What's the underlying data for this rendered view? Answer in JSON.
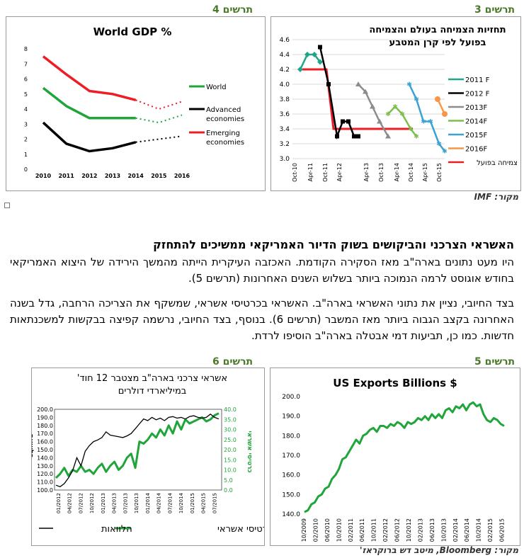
{
  "fig3": {
    "label": "תרשים 3",
    "title_line1": "תחזיות הצמיחה בעולם והצמיחה",
    "title_line2": "בפועל לפי קרן המטבע",
    "yticks": [
      "4.6",
      "4.4",
      "4.2",
      "4.0",
      "3.8",
      "3.6",
      "3.4",
      "3.2",
      "3.0"
    ],
    "xticks": [
      "Oct-10",
      "Apr-11",
      "Oct-11",
      "Apr-12",
      "Apr-13",
      "Oct-13",
      "Apr-14",
      "Oct-14",
      "Apr-15",
      "Oct-15"
    ],
    "legend": [
      "2011 F",
      "2012 F",
      "2013F",
      "2014F",
      "2015F",
      "2016F",
      "צמיחה בפועל"
    ]
  },
  "fig4": {
    "label": "תרשים 4",
    "title": "World GDP %",
    "yticks": [
      "8",
      "7",
      "6",
      "5",
      "4",
      "3",
      "2",
      "1",
      "0"
    ],
    "xticks": [
      "2010",
      "2011",
      "2012",
      "2013",
      "2014",
      "2015",
      "2016"
    ],
    "legend": [
      "World",
      "Advanced economies",
      "Emerging economies"
    ]
  },
  "source_top": "מקור: IMF",
  "article": {
    "heading": "האשראי הצרכני והביקושים בשוק הדיור האמריקאי ממשיכים להתחזק",
    "p1": "היו מעט נתונים בארה\"ב מאז הסקירה הקודמת. האכזבה העיקרית הייתה מהמשך הירידה של היצוא האמריקאי בחודש אוגוסט לרמה הנמוכה ביותר בשלוש השנים האחרונות (תרשים 5).",
    "p2": "בצד החיובי, נציין את נתוני האשראי בארה\"ב. האשראי בכרטיסי אשראי, שמשקף את הצריכה הרחבה, גדל בשנה האחרונה בקצב הגבוה ביותר מאז המשבר (תרשים 6). בנוסף, בצד החיובי, נרשמה קפיצה בבקשות למשכנתאות חדשות. כמו כן, תביעות דמי אבטלה בארה\"ב הוסיפו לרדת."
  },
  "fig5": {
    "label": "תרשים 5",
    "title": "US  Exports Billions $",
    "yticks": [
      "200.0",
      "190.0",
      "180.0",
      "170.0",
      "160.0",
      "150.0",
      "140.0"
    ],
    "xticks": [
      "10/2009",
      "02/2010",
      "06/2010",
      "10/2010",
      "02/2011",
      "06/2011",
      "10/2011",
      "02/2012",
      "06/2012",
      "10/2012",
      "02/2013",
      "06/2013",
      "10/2013",
      "02/2014",
      "06/2014",
      "10/2014",
      "02/2015",
      "06/2015"
    ]
  },
  "fig6": {
    "label": "תרשים 6",
    "title_line1": "אשראי צרכני בארה\"ב מצטבר 12 חוד'",
    "title_line2": "במיליארדי דולרים",
    "left_axis_label": "הלוואות",
    "right_axis_label": "כרטיסי אשראי",
    "yticks_left": [
      "200.0",
      "190.0",
      "180.0",
      "170.0",
      "160.0",
      "150.0",
      "140.0",
      "130.0",
      "120.0",
      "110.0",
      "100.0"
    ],
    "yticks_right": [
      "40.0",
      "35.0",
      "30.0",
      "25.0",
      "20.0",
      "15.0",
      "10.0",
      "5.0",
      "0.0"
    ],
    "xticks": [
      "01/2012",
      "04/2012",
      "07/2012",
      "10/2012",
      "01/2013",
      "04/2013",
      "07/2013",
      "10/2013",
      "01/2014",
      "04/2014",
      "07/2014",
      "10/2014",
      "01/2015",
      "04/2015",
      "07/2015"
    ],
    "legend_loans": "הלוואות",
    "legend_cards": "כרטיסי אשראי"
  },
  "source_bottom": "מקור: Bloomberg, מיטב דש ברוקראז'",
  "colors": {
    "accent_green": "#4a7a2a",
    "green": "#1fa53a",
    "red": "#ee1c25"
  },
  "chart_data": [
    {
      "type": "line",
      "title": "World GDP %",
      "x": [
        "2010",
        "2011",
        "2012",
        "2013",
        "2014",
        "2015",
        "2016"
      ],
      "ylim": [
        0,
        8
      ],
      "series": [
        {
          "name": "World",
          "values": [
            5.4,
            4.2,
            3.4,
            3.4,
            3.4,
            3.1,
            3.6
          ]
        },
        {
          "name": "Advanced economies",
          "values": [
            3.1,
            1.7,
            1.2,
            1.4,
            1.8,
            2.0,
            2.2
          ]
        },
        {
          "name": "Emerging economies",
          "values": [
            7.5,
            6.3,
            5.2,
            5.0,
            4.6,
            4.0,
            4.5
          ]
        }
      ],
      "note": "2015-2016 dotted (forecast)"
    },
    {
      "type": "line",
      "title": "US  Exports Billions $",
      "ylim": [
        140,
        200
      ],
      "x_first": "10/2009",
      "values": [
        141,
        142,
        145,
        146,
        149,
        150,
        153,
        154,
        158,
        160,
        163,
        168,
        169,
        172,
        175,
        178,
        176,
        180,
        181,
        183,
        184,
        182,
        185,
        185,
        184,
        186,
        185,
        187,
        186,
        184,
        187,
        186,
        187,
        189,
        188,
        190,
        188,
        191,
        189,
        191,
        189,
        193,
        194,
        192,
        195,
        194,
        196,
        193,
        196,
        197,
        195,
        196,
        191,
        188,
        187,
        189,
        188,
        186,
        185
      ]
    },
    {
      "type": "line",
      "title": "אשראי צרכני בארה\"ב מצטבר 12 חוד'",
      "series": [
        {
          "name": "הלוואות",
          "axis": "left",
          "ylim": [
            100,
            200
          ],
          "values": [
            106,
            104,
            108,
            115,
            124,
            140,
            130,
            148,
            155,
            160,
            162,
            165,
            172,
            168,
            167,
            166,
            165,
            167,
            170,
            176,
            182,
            188,
            186,
            190,
            187,
            189,
            186,
            190,
            191,
            189,
            190,
            188,
            191,
            192,
            190,
            189,
            190,
            194,
            190,
            188
          ]
        },
        {
          "name": "כרטיסי אשראי",
          "axis": "right",
          "ylim": [
            0,
            40
          ],
          "values": [
            6,
            8,
            11,
            7,
            10,
            9,
            12,
            9,
            10,
            8,
            11,
            13,
            9,
            12,
            14,
            10,
            12,
            16,
            18,
            11,
            24,
            23,
            25,
            28,
            26,
            30,
            27,
            32,
            28,
            34,
            30,
            35,
            33,
            34,
            35,
            36,
            34,
            35,
            37,
            38
          ]
        }
      ]
    }
  ]
}
